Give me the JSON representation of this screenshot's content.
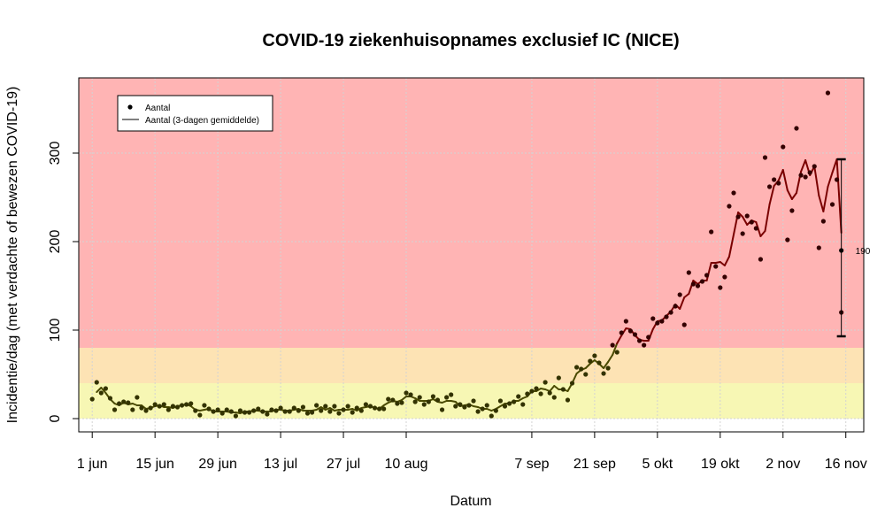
{
  "chart_data": {
    "type": "scatter",
    "title": "COVID-19 ziekenhuisopnames exclusief IC (NICE)",
    "xlabel": "Datum",
    "ylabel": "Incidentie/dag (met verdachte of bewezen COVID-19)",
    "x_start": "2020-06-01",
    "xlim": [
      "2020-05-29",
      "2020-11-20"
    ],
    "ylim": [
      -15,
      385
    ],
    "x_ticks": [
      {
        "date": "2020-06-01",
        "label": "1 jun"
      },
      {
        "date": "2020-06-15",
        "label": "15 jun"
      },
      {
        "date": "2020-06-29",
        "label": "29 jun"
      },
      {
        "date": "2020-07-13",
        "label": "13 jul"
      },
      {
        "date": "2020-07-27",
        "label": "27 jul"
      },
      {
        "date": "2020-08-10",
        "label": "10 aug"
      },
      {
        "date": "2020-09-07",
        "label": "7 sep"
      },
      {
        "date": "2020-09-21",
        "label": "21 sep"
      },
      {
        "date": "2020-10-05",
        "label": "5 okt"
      },
      {
        "date": "2020-10-19",
        "label": "19 okt"
      },
      {
        "date": "2020-11-02",
        "label": "2 nov"
      },
      {
        "date": "2020-11-16",
        "label": "16 nov"
      }
    ],
    "y_ticks": [
      0,
      100,
      200,
      300
    ],
    "grid": true,
    "background_bands": [
      {
        "from": 0,
        "to": 40,
        "color": "#f7f7b4"
      },
      {
        "from": 40,
        "to": 80,
        "color": "#fde3b4"
      },
      {
        "from": 80,
        "to": 385,
        "color": "#ffb4b4"
      }
    ],
    "legend": {
      "position": "top-left",
      "entries": [
        {
          "label": "Aantal",
          "symbol": "point"
        },
        {
          "label": "Aantal (3-dagen gemiddelde)",
          "symbol": "line"
        }
      ]
    },
    "colors": {
      "points_low": "#333300",
      "points_high": "#330000",
      "line_low": "#4a4a00",
      "line_high": "#7a0000",
      "errorbar": "#000000"
    },
    "series": [
      {
        "name": "Aantal",
        "kind": "points",
        "values": [
          22,
          41,
          29,
          34,
          23,
          10,
          17,
          19,
          18,
          10,
          24,
          12,
          9,
          12,
          16,
          14,
          16,
          10,
          14,
          13,
          15,
          16,
          17,
          9,
          4,
          15,
          11,
          8,
          10,
          6,
          10,
          8,
          3,
          9,
          7,
          7,
          9,
          11,
          8,
          5,
          10,
          9,
          12,
          8,
          8,
          12,
          9,
          13,
          6,
          7,
          15,
          9,
          14,
          8,
          14,
          6,
          10,
          14,
          7,
          12,
          9,
          16,
          14,
          12,
          11,
          11,
          22,
          21,
          17,
          18,
          29,
          27,
          19,
          24,
          16,
          19,
          25,
          21,
          10,
          24,
          27,
          14,
          16,
          13,
          15,
          20,
          8,
          11,
          15,
          3,
          9,
          20,
          14,
          17,
          19,
          25,
          16,
          28,
          31,
          34,
          28,
          41,
          29,
          24,
          46,
          33,
          21,
          40,
          58,
          56,
          50,
          65,
          71,
          63,
          51,
          57,
          83,
          75,
          97,
          110,
          99,
          95,
          88,
          83,
          92,
          113,
          108,
          110,
          115,
          120,
          127,
          140,
          106,
          165,
          152,
          150,
          155,
          162,
          211,
          172,
          148,
          160,
          240,
          255,
          228,
          209,
          229,
          222,
          215,
          180,
          295,
          262,
          270,
          266,
          307,
          202,
          235,
          328,
          275,
          273,
          278,
          285,
          193,
          223,
          368,
          242,
          270,
          120
        ]
      },
      {
        "name": "Aantal (3-dagen gemiddelde)",
        "kind": "line",
        "values": [
          null,
          30,
          35,
          29,
          22,
          17,
          15,
          18,
          16,
          17,
          15,
          15,
          11,
          12,
          14,
          15,
          13,
          13,
          12,
          14,
          15,
          16,
          14,
          10,
          9,
          10,
          11,
          8,
          8,
          8,
          8,
          7,
          7,
          6,
          8,
          8,
          9,
          9,
          8,
          8,
          8,
          10,
          10,
          9,
          9,
          10,
          11,
          9,
          9,
          9,
          10,
          13,
          10,
          12,
          9,
          10,
          10,
          10,
          11,
          9,
          12,
          13,
          14,
          12,
          11,
          15,
          18,
          20,
          19,
          21,
          25,
          25,
          23,
          20,
          20,
          20,
          22,
          19,
          18,
          20,
          20,
          19,
          14,
          15,
          16,
          14,
          13,
          11,
          11,
          9,
          11,
          14,
          17,
          17,
          20,
          20,
          23,
          25,
          31,
          31,
          34,
          33,
          31,
          37,
          33,
          33,
          31,
          40,
          51,
          55,
          57,
          62,
          66,
          62,
          57,
          64,
          72,
          85,
          94,
          102,
          101,
          94,
          89,
          88,
          88,
          101,
          110,
          111,
          116,
          121,
          129,
          124,
          137,
          141,
          156,
          152,
          156,
          156,
          176,
          176,
          177,
          173,
          183,
          208,
          233,
          228,
          219,
          224,
          222,
          206,
          212,
          242,
          263,
          269,
          281,
          258,
          248,
          255,
          279,
          292,
          275,
          285,
          252,
          234,
          262,
          278,
          293,
          210
        ]
      }
    ],
    "annotation": {
      "date": "2020-11-15",
      "value": 190,
      "low": 93,
      "high": 293,
      "label": "190"
    }
  }
}
